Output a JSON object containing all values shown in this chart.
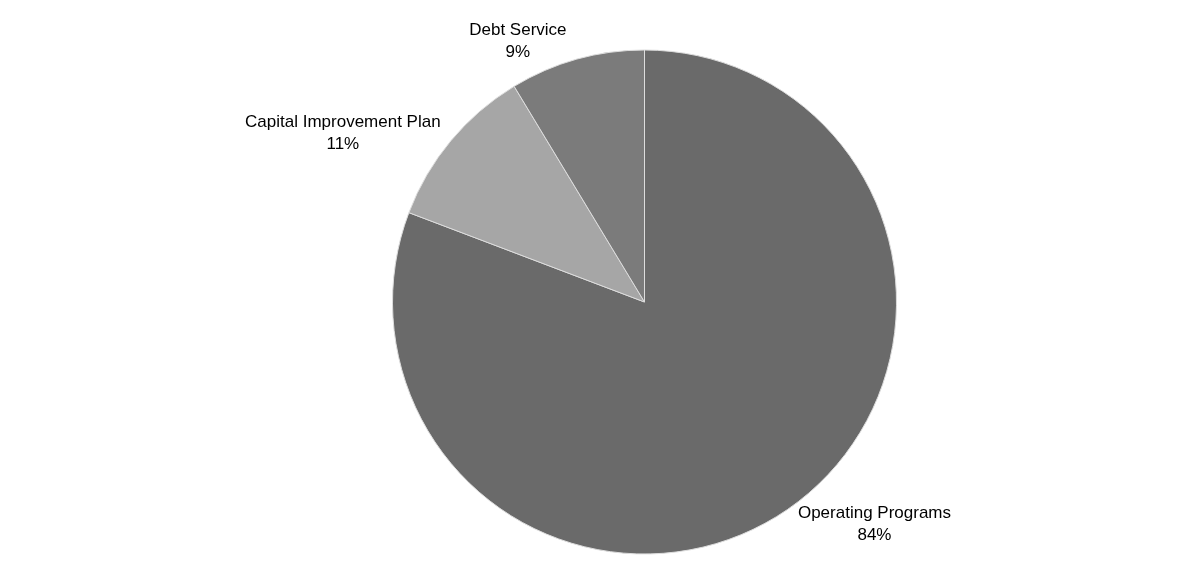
{
  "chart_data": {
    "type": "pie",
    "categories": [
      "Operating Programs",
      "Capital Improvement Plan",
      "Debt Service"
    ],
    "values": [
      84,
      11,
      9
    ],
    "value_labels": [
      "84%",
      "11%",
      "9%"
    ],
    "colors": [
      "#6a6a6a",
      "#a6a6a6",
      "#7b7b7b"
    ],
    "legend": false
  }
}
